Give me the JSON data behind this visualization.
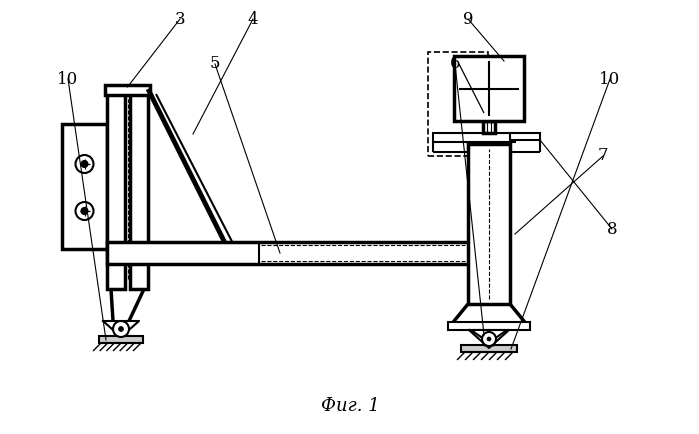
{
  "title": "Фиг. 1",
  "bg_color": "#ffffff",
  "lw": 1.5,
  "lw2": 2.5
}
